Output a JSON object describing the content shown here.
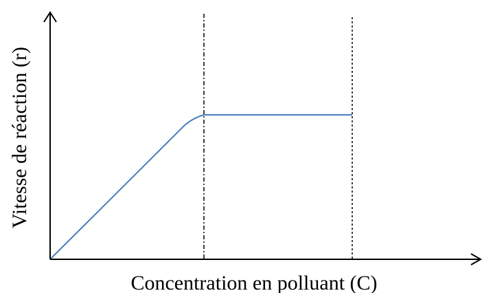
{
  "x_axis": {
    "label": "Concentration en polluant (C)"
  },
  "y_axis": {
    "label": "Vitesse de réaction (r)"
  }
}
